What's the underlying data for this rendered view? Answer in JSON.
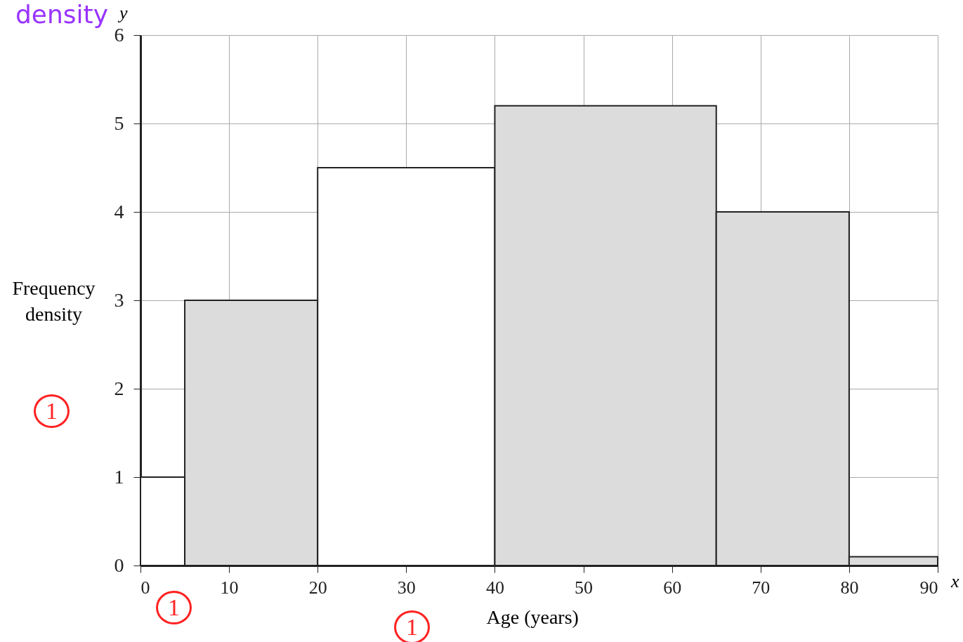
{
  "chart_data": {
    "type": "histogram",
    "xlabel": "Age (years)",
    "ylabel": "Frequency density",
    "bins": [
      0,
      5,
      20,
      40,
      65,
      80,
      90
    ],
    "values": [
      1,
      3,
      4.5,
      5.2,
      4,
      0.1
    ],
    "colors": [
      "#ffffff",
      "#dcdcdc",
      "#ffffff",
      "#dcdcdc",
      "#dcdcdc",
      "#dcdcdc"
    ],
    "xlim": [
      0,
      90
    ],
    "xticks": [
      0,
      10,
      20,
      30,
      40,
      50,
      60,
      70,
      80,
      90
    ],
    "ylim": [
      0,
      6
    ],
    "yticks": [
      0,
      1,
      2,
      3,
      4,
      5,
      6
    ],
    "grid": true,
    "annotations": [
      "density",
      "y",
      "x",
      "1",
      "1",
      "1"
    ]
  }
}
